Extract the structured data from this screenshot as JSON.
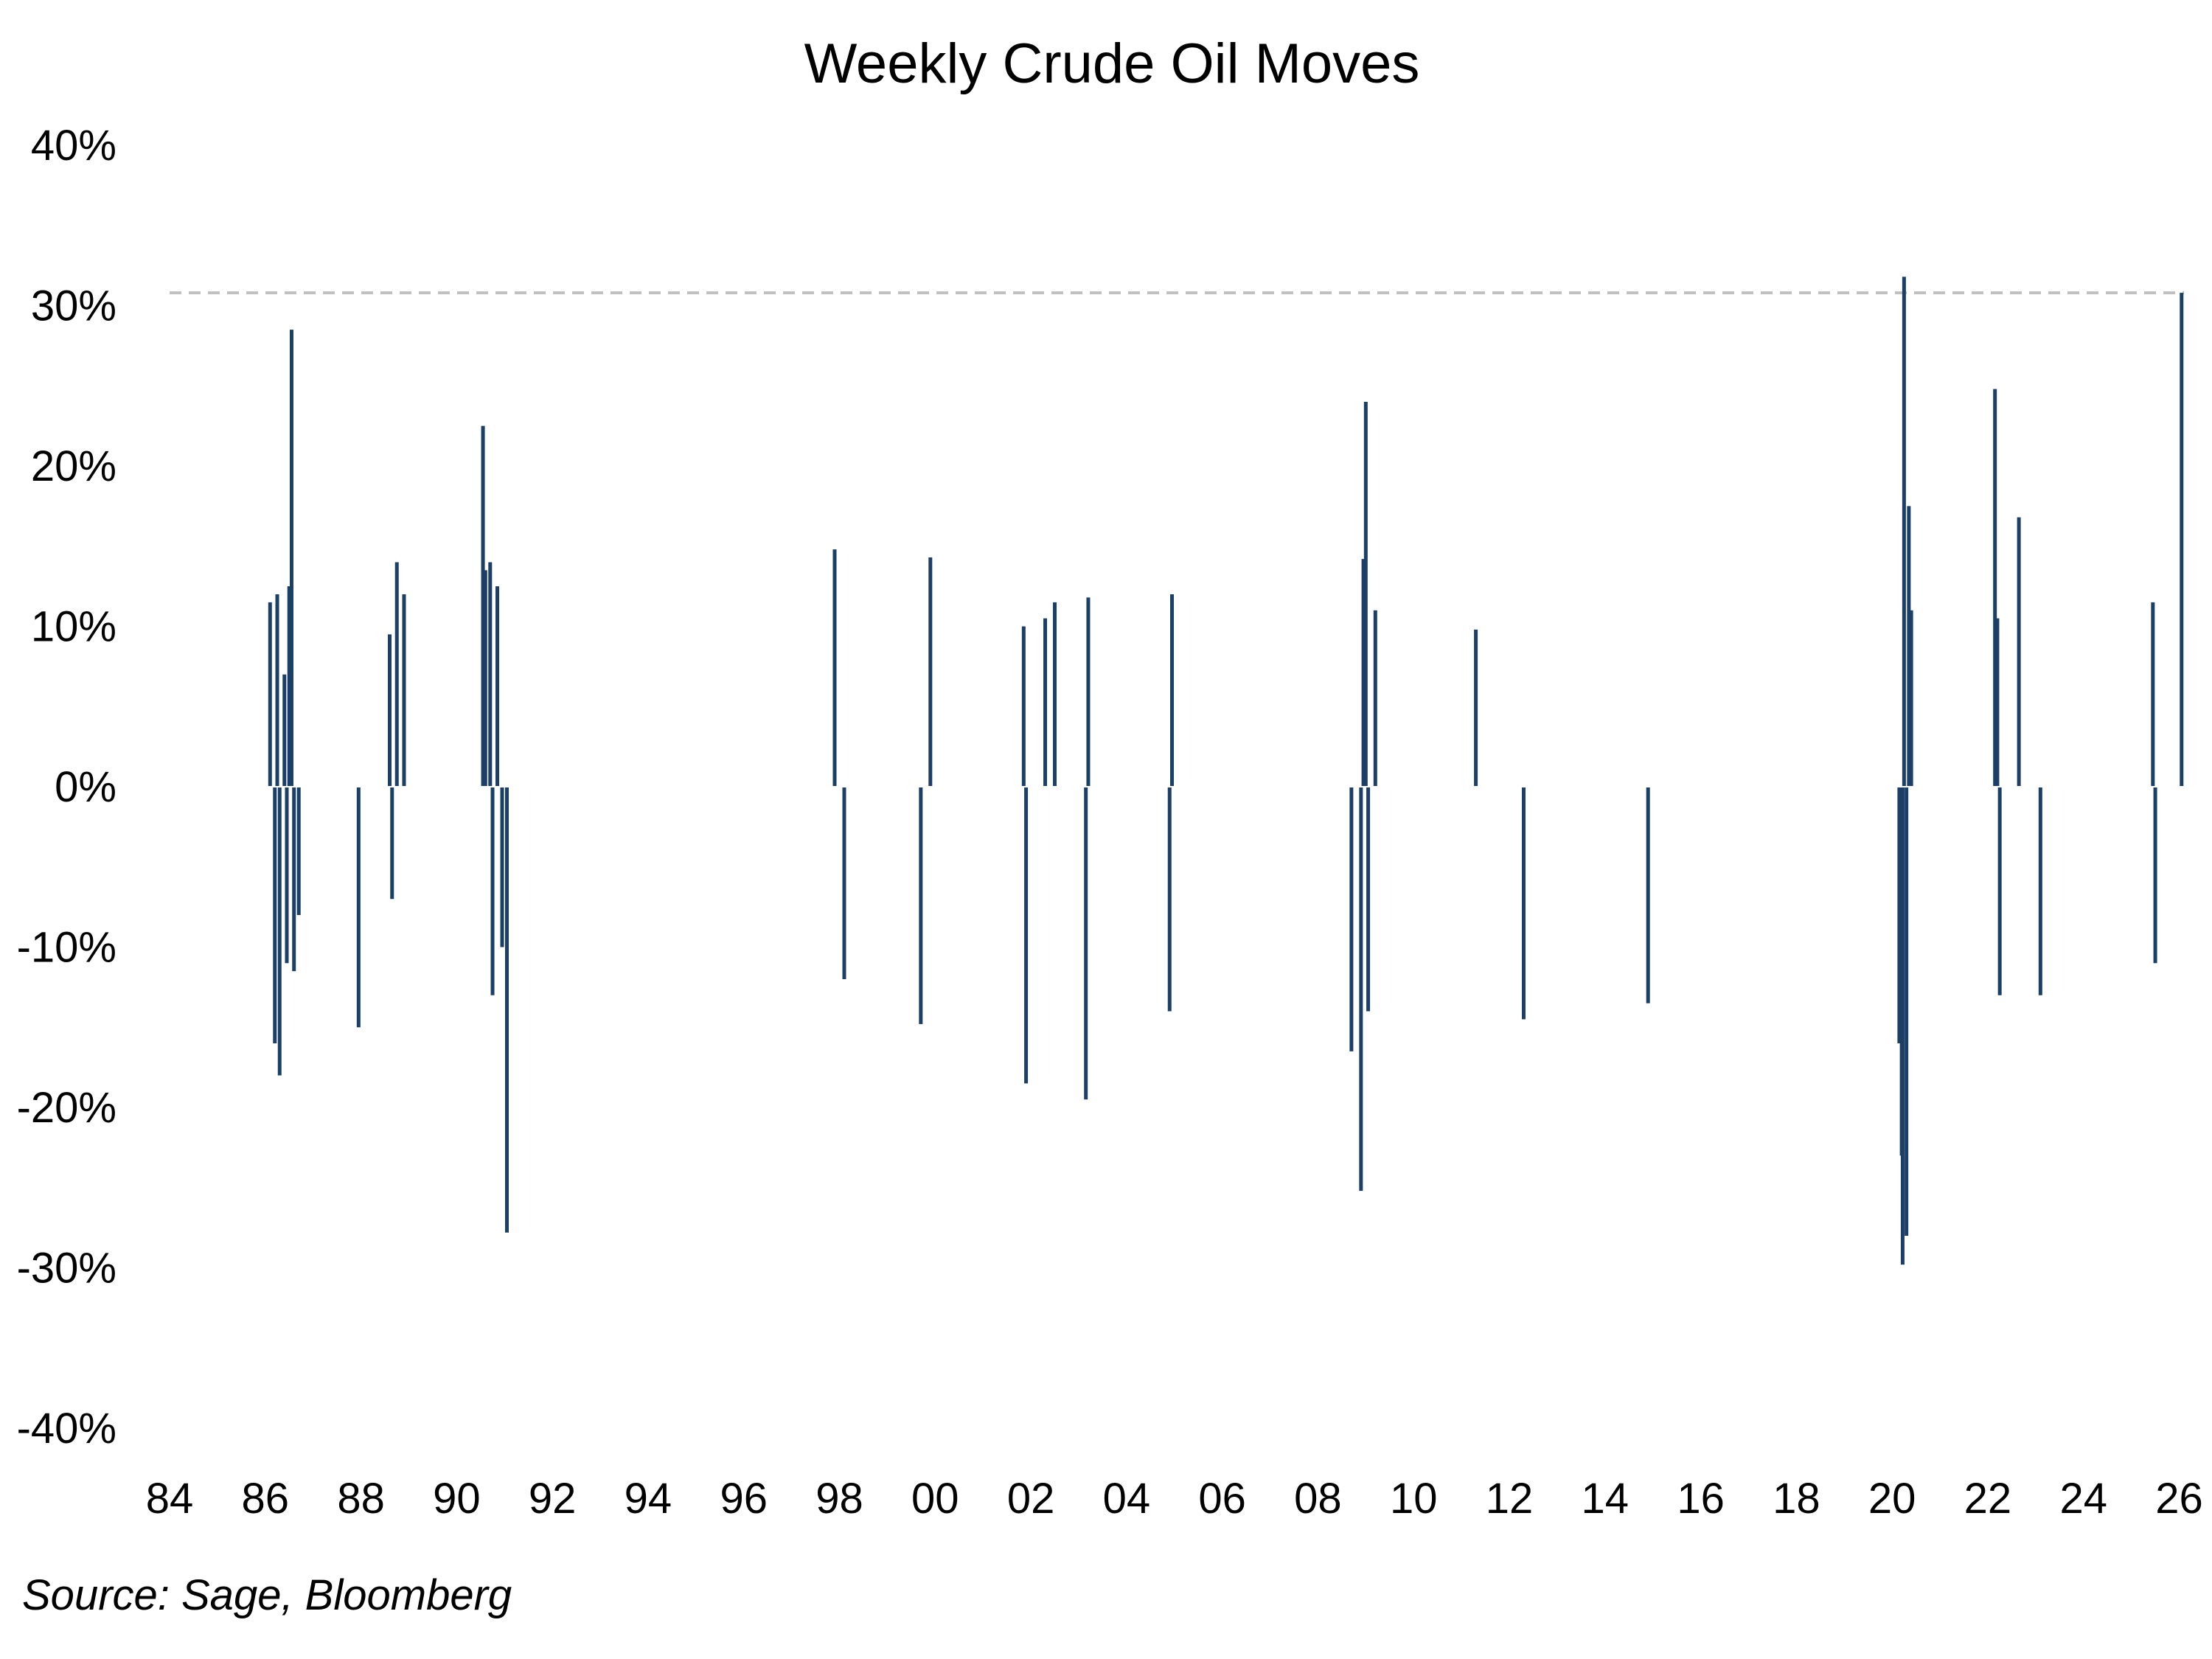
{
  "chart_data": {
    "type": "bar",
    "title": "Weekly Crude Oil Moves",
    "source": "Source: Sage, Bloomberg",
    "x_range": [
      1984,
      2026.1
    ],
    "xtick_labels": [
      "84",
      "86",
      "88",
      "90",
      "92",
      "94",
      "96",
      "98",
      "00",
      "02",
      "04",
      "06",
      "08",
      "10",
      "12",
      "14",
      "16",
      "18",
      "20",
      "22",
      "24",
      "26"
    ],
    "xtick_years": [
      1984,
      1986,
      1988,
      1990,
      1992,
      1994,
      1996,
      1998,
      2000,
      2002,
      2004,
      2006,
      2008,
      2010,
      2012,
      2014,
      2016,
      2018,
      2020,
      2022,
      2024,
      2026
    ],
    "ylim": [
      -40,
      40
    ],
    "yticks": [
      40,
      30,
      20,
      10,
      0,
      -10,
      -20,
      -30,
      -40
    ],
    "ytick_labels": [
      "40%",
      "30%",
      "20%",
      "10%",
      "0%",
      "-10%",
      "-20%",
      "-30%",
      "-40%"
    ],
    "reference_line": {
      "value": 30.8,
      "style": "dashed",
      "color": "#c0c0c0"
    },
    "bar_color": "#1b3f66",
    "grid": false,
    "series": [
      {
        "points": [
          [
            1986.1,
            11.5
          ],
          [
            1986.2,
            -16
          ],
          [
            1986.25,
            12
          ],
          [
            1986.3,
            -18
          ],
          [
            1986.4,
            7
          ],
          [
            1986.45,
            -11
          ],
          [
            1986.5,
            12.5
          ],
          [
            1986.55,
            28.5
          ],
          [
            1986.6,
            -11.5
          ],
          [
            1986.7,
            -8
          ],
          [
            1987.95,
            -15
          ],
          [
            1988.6,
            9.5
          ],
          [
            1988.75,
            14
          ],
          [
            1988.9,
            12
          ],
          [
            1988.65,
            -7
          ],
          [
            1990.55,
            22.5
          ],
          [
            1990.6,
            13.5
          ],
          [
            1990.7,
            14
          ],
          [
            1990.75,
            -13
          ],
          [
            1990.85,
            12.5
          ],
          [
            1990.95,
            -10
          ],
          [
            1991.05,
            -27.8
          ],
          [
            1997.9,
            14.8
          ],
          [
            1998.1,
            -12
          ],
          [
            1999.9,
            14.3
          ],
          [
            1999.7,
            -14.8
          ],
          [
            2001.85,
            10
          ],
          [
            2001.9,
            -18.5
          ],
          [
            2002.3,
            10.5
          ],
          [
            2002.5,
            11.5
          ],
          [
            2003.15,
            -19.5
          ],
          [
            2003.2,
            11.8
          ],
          [
            2004.9,
            -14
          ],
          [
            2004.95,
            12
          ],
          [
            2008.7,
            -16.5
          ],
          [
            2008.9,
            -25.2
          ],
          [
            2008.95,
            14.2
          ],
          [
            2009.0,
            24
          ],
          [
            2009.05,
            -14
          ],
          [
            2009.2,
            11
          ],
          [
            2011.3,
            9.8
          ],
          [
            2012.3,
            -14.5
          ],
          [
            2014.9,
            -13.5
          ],
          [
            2020.15,
            -16
          ],
          [
            2020.2,
            -23
          ],
          [
            2020.22,
            -29.8
          ],
          [
            2020.25,
            31.8
          ],
          [
            2020.3,
            -28
          ],
          [
            2020.35,
            17.5
          ],
          [
            2020.4,
            11
          ],
          [
            2022.15,
            24.8
          ],
          [
            2022.2,
            10.5
          ],
          [
            2022.25,
            -13
          ],
          [
            2022.65,
            16.8
          ],
          [
            2023.1,
            -13
          ],
          [
            2025.45,
            11.5
          ],
          [
            2025.5,
            -11
          ],
          [
            2026.05,
            30.8
          ]
        ]
      }
    ]
  }
}
